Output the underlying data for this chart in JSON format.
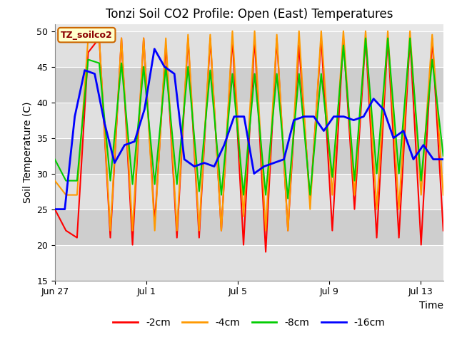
{
  "title": "Tonzi Soil CO2 Profile: Open (East) Temperatures",
  "xlabel": "Time",
  "ylabel": "Soil Temperature (C)",
  "ylim": [
    15,
    51
  ],
  "yticks": [
    15,
    20,
    25,
    30,
    35,
    40,
    45,
    50
  ],
  "legend_label": "TZ_soilco2",
  "series_labels": [
    "-2cm",
    "-4cm",
    "-8cm",
    "-16cm"
  ],
  "series_colors": [
    "#ff0000",
    "#ff9900",
    "#00cc00",
    "#0000ff"
  ],
  "title_fontsize": 12,
  "axis_label_fontsize": 10,
  "tick_fontsize": 9,
  "xtick_labels": [
    "Jun 27",
    "Jul 1",
    "Jul 5",
    "Jul 9",
    "Jul 13"
  ],
  "xtick_positions": [
    0,
    4,
    8,
    12,
    16
  ],
  "stripe_colors": [
    "#e8e8e8",
    "#d8d8d8"
  ],
  "plot_bg": "#e8e8e8",
  "y_2cm": [
    25,
    22,
    21,
    47,
    49,
    21,
    49,
    20,
    49,
    23,
    48,
    21,
    49,
    21,
    49,
    22,
    49,
    20,
    49,
    19,
    49,
    22,
    48,
    26,
    49,
    22,
    49,
    25,
    49,
    21,
    49,
    21,
    49,
    20,
    49,
    22
  ],
  "y_4cm": [
    29,
    27,
    27,
    49,
    49,
    22,
    49,
    22,
    49,
    22,
    49,
    22,
    49.5,
    22,
    49.5,
    22,
    50,
    24,
    50,
    22,
    49.5,
    22,
    50,
    25,
    50,
    27,
    50,
    27,
    50,
    25,
    50,
    25,
    50,
    27,
    49.5,
    27
  ],
  "y_8cm": [
    32,
    29,
    29,
    46,
    45.5,
    29,
    45.5,
    28.5,
    45,
    28.5,
    45,
    28.5,
    45,
    27.5,
    44.5,
    27,
    44,
    27,
    44,
    27,
    44,
    26.5,
    44,
    27,
    44,
    29.5,
    48,
    29,
    49,
    30,
    49,
    30,
    49,
    29,
    46,
    32.5
  ],
  "y_16cm": [
    25,
    25,
    38,
    44.5,
    44,
    37,
    31.5,
    34,
    34.5,
    39,
    47.5,
    45,
    44,
    32,
    31,
    31.5,
    31,
    34,
    38,
    38,
    30,
    31,
    31.5,
    32,
    37.5,
    38,
    38,
    36,
    38,
    38,
    37.5,
    38,
    40.5,
    39,
    35,
    36,
    32,
    34,
    32,
    32
  ],
  "num_points_shallow": 36,
  "num_points_deep": 40,
  "t_max": 17
}
